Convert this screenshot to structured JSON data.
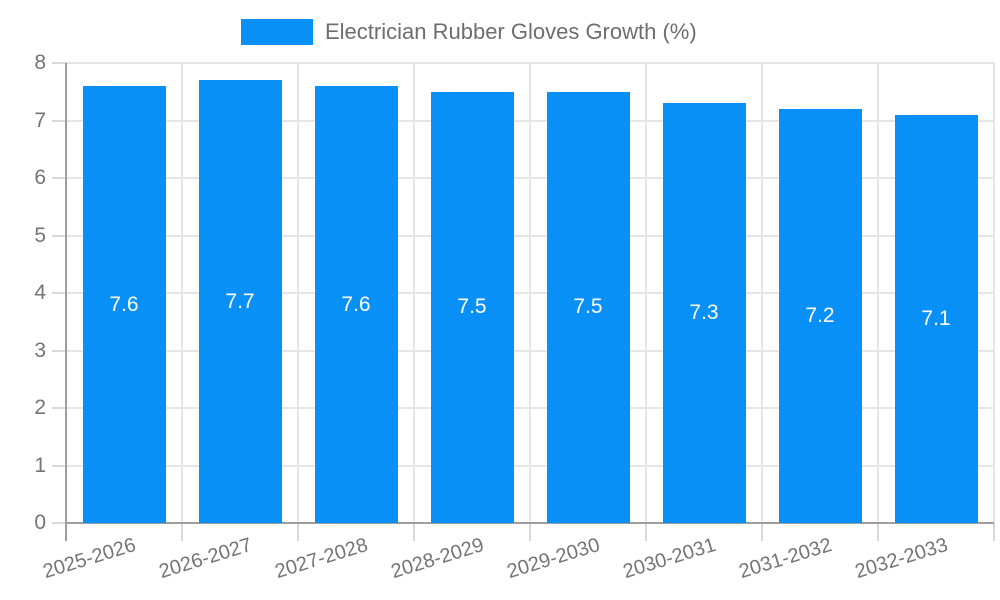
{
  "chart_data": {
    "type": "bar",
    "title": "Electrician Rubber Gloves Growth (%)",
    "categories": [
      "2025-2026",
      "2026-2027",
      "2027-2028",
      "2028-2029",
      "2029-2030",
      "2030-2031",
      "2031-2032",
      "2032-2033"
    ],
    "values": [
      7.6,
      7.7,
      7.6,
      7.5,
      7.5,
      7.3,
      7.2,
      7.1
    ],
    "value_labels": [
      "7.6",
      "7.7",
      "7.6",
      "7.5",
      "7.5",
      "7.3",
      "7.2",
      "7.1"
    ],
    "ylabel": "",
    "xlabel": "",
    "ylim": [
      0,
      8
    ],
    "ytick_step": 1,
    "ytick_labels": [
      "0",
      "1",
      "2",
      "3",
      "4",
      "5",
      "6",
      "7",
      "8"
    ],
    "grid": true,
    "legend_position": "top",
    "colors": {
      "bar": "#0990f6",
      "bar_value_label": "#ffffff",
      "grid": "#e6e6e6",
      "tick": "#d9d9d9",
      "axis": "#9e9e9e",
      "axis_text": "#757575",
      "legend_text": "#6e6e6e",
      "background": "#ffffff"
    }
  },
  "legend": {
    "label": "Electrician Rubber Gloves Growth (%)"
  }
}
